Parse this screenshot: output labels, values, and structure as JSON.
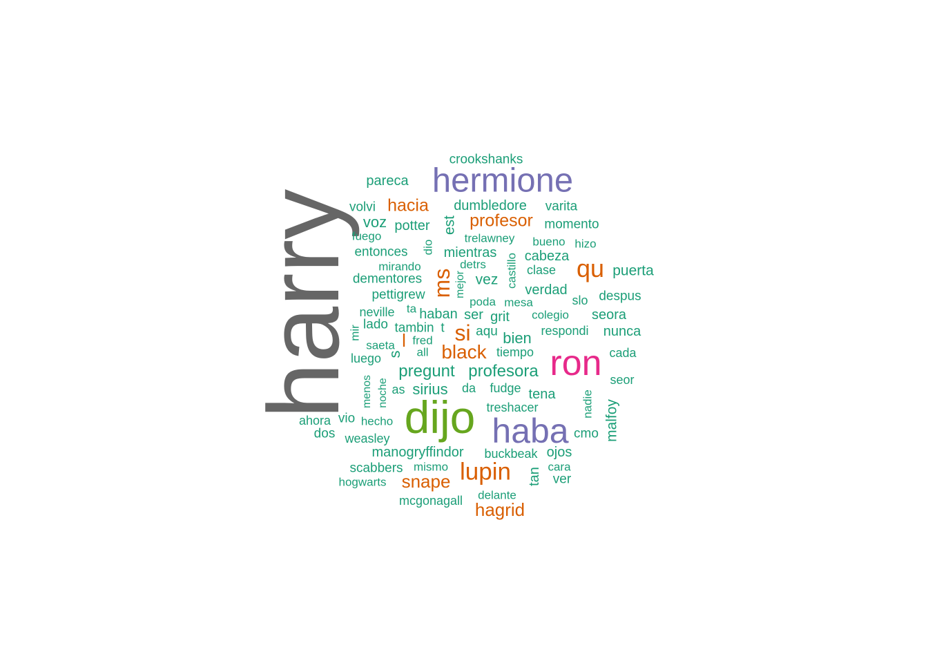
{
  "colors": {
    "teal": "#1b9e77",
    "orange": "#d95f02",
    "purple": "#7570b3",
    "magenta": "#e7298a",
    "green": "#66a61e",
    "gray": "#666666"
  },
  "words": [
    {
      "text": "harry",
      "color": "#666666",
      "rotated": true
    },
    {
      "text": "dijo",
      "color": "#66a61e",
      "rotated": false
    },
    {
      "text": "ron",
      "color": "#e7298a",
      "rotated": false
    },
    {
      "text": "hermione",
      "color": "#7570b3",
      "rotated": false
    },
    {
      "text": "haba",
      "color": "#7570b3",
      "rotated": false
    },
    {
      "text": "lupin",
      "color": "#d95f02",
      "rotated": false
    },
    {
      "text": "qu",
      "color": "#d95f02",
      "rotated": false
    },
    {
      "text": "ms",
      "color": "#d95f02",
      "rotated": true
    },
    {
      "text": "si",
      "color": "#d95f02",
      "rotated": false
    },
    {
      "text": "black",
      "color": "#d95f02",
      "rotated": false
    },
    {
      "text": "hacia",
      "color": "#d95f02",
      "rotated": false
    },
    {
      "text": "profesor",
      "color": "#d95f02",
      "rotated": false
    },
    {
      "text": "snape",
      "color": "#d95f02",
      "rotated": false
    },
    {
      "text": "hagrid",
      "color": "#d95f02",
      "rotated": false
    },
    {
      "text": "l",
      "color": "#d95f02",
      "rotated": false
    },
    {
      "text": "crookshanks",
      "color": "#1b9e77",
      "rotated": false
    },
    {
      "text": "pareca",
      "color": "#1b9e77",
      "rotated": false
    },
    {
      "text": "volvi",
      "color": "#1b9e77",
      "rotated": false
    },
    {
      "text": "dumbledore",
      "color": "#1b9e77",
      "rotated": false
    },
    {
      "text": "varita",
      "color": "#1b9e77",
      "rotated": false
    },
    {
      "text": "voz",
      "color": "#1b9e77",
      "rotated": false
    },
    {
      "text": "potter",
      "color": "#1b9e77",
      "rotated": false
    },
    {
      "text": "est",
      "color": "#1b9e77",
      "rotated": true
    },
    {
      "text": "momento",
      "color": "#1b9e77",
      "rotated": false
    },
    {
      "text": "fuego",
      "color": "#1b9e77",
      "rotated": false
    },
    {
      "text": "trelawney",
      "color": "#1b9e77",
      "rotated": false
    },
    {
      "text": "bueno",
      "color": "#1b9e77",
      "rotated": false
    },
    {
      "text": "hizo",
      "color": "#1b9e77",
      "rotated": false
    },
    {
      "text": "entonces",
      "color": "#1b9e77",
      "rotated": false
    },
    {
      "text": "dio",
      "color": "#1b9e77",
      "rotated": true
    },
    {
      "text": "mientras",
      "color": "#1b9e77",
      "rotated": false
    },
    {
      "text": "cabeza",
      "color": "#1b9e77",
      "rotated": false
    },
    {
      "text": "mirando",
      "color": "#1b9e77",
      "rotated": false
    },
    {
      "text": "detrs",
      "color": "#1b9e77",
      "rotated": false
    },
    {
      "text": "castillo",
      "color": "#1b9e77",
      "rotated": true
    },
    {
      "text": "clase",
      "color": "#1b9e77",
      "rotated": false
    },
    {
      "text": "puerta",
      "color": "#1b9e77",
      "rotated": false
    },
    {
      "text": "dementores",
      "color": "#1b9e77",
      "rotated": false
    },
    {
      "text": "mejor",
      "color": "#1b9e77",
      "rotated": true
    },
    {
      "text": "vez",
      "color": "#1b9e77",
      "rotated": false
    },
    {
      "text": "verdad",
      "color": "#1b9e77",
      "rotated": false
    },
    {
      "text": "pettigrew",
      "color": "#1b9e77",
      "rotated": false
    },
    {
      "text": "poda",
      "color": "#1b9e77",
      "rotated": false
    },
    {
      "text": "mesa",
      "color": "#1b9e77",
      "rotated": false
    },
    {
      "text": "slo",
      "color": "#1b9e77",
      "rotated": false
    },
    {
      "text": "despus",
      "color": "#1b9e77",
      "rotated": false
    },
    {
      "text": "neville",
      "color": "#1b9e77",
      "rotated": false
    },
    {
      "text": "ta",
      "color": "#1b9e77",
      "rotated": false
    },
    {
      "text": "haban",
      "color": "#1b9e77",
      "rotated": false
    },
    {
      "text": "ser",
      "color": "#1b9e77",
      "rotated": false
    },
    {
      "text": "grit",
      "color": "#1b9e77",
      "rotated": false
    },
    {
      "text": "colegio",
      "color": "#1b9e77",
      "rotated": false
    },
    {
      "text": "seora",
      "color": "#1b9e77",
      "rotated": false
    },
    {
      "text": "lado",
      "color": "#1b9e77",
      "rotated": false
    },
    {
      "text": "tambin",
      "color": "#1b9e77",
      "rotated": false
    },
    {
      "text": "t",
      "color": "#1b9e77",
      "rotated": false
    },
    {
      "text": "aqu",
      "color": "#1b9e77",
      "rotated": false
    },
    {
      "text": "respondi",
      "color": "#1b9e77",
      "rotated": false
    },
    {
      "text": "nunca",
      "color": "#1b9e77",
      "rotated": false
    },
    {
      "text": "mir",
      "color": "#1b9e77",
      "rotated": true
    },
    {
      "text": "fred",
      "color": "#1b9e77",
      "rotated": false
    },
    {
      "text": "bien",
      "color": "#1b9e77",
      "rotated": false
    },
    {
      "text": "saeta",
      "color": "#1b9e77",
      "rotated": false
    },
    {
      "text": "all",
      "color": "#1b9e77",
      "rotated": false
    },
    {
      "text": "tiempo",
      "color": "#1b9e77",
      "rotated": false
    },
    {
      "text": "cada",
      "color": "#1b9e77",
      "rotated": false
    },
    {
      "text": "luego",
      "color": "#1b9e77",
      "rotated": false
    },
    {
      "text": "s",
      "color": "#1b9e77",
      "rotated": true
    },
    {
      "text": "pregunt",
      "color": "#1b9e77",
      "rotated": false
    },
    {
      "text": "profesora",
      "color": "#1b9e77",
      "rotated": false
    },
    {
      "text": "seor",
      "color": "#1b9e77",
      "rotated": false
    },
    {
      "text": "menos",
      "color": "#1b9e77",
      "rotated": true
    },
    {
      "text": "noche",
      "color": "#1b9e77",
      "rotated": true
    },
    {
      "text": "as",
      "color": "#1b9e77",
      "rotated": false
    },
    {
      "text": "sirius",
      "color": "#1b9e77",
      "rotated": false
    },
    {
      "text": "da",
      "color": "#1b9e77",
      "rotated": false
    },
    {
      "text": "fudge",
      "color": "#1b9e77",
      "rotated": false
    },
    {
      "text": "tena",
      "color": "#1b9e77",
      "rotated": false
    },
    {
      "text": "nadie",
      "color": "#1b9e77",
      "rotated": true
    },
    {
      "text": "malfoy",
      "color": "#1b9e77",
      "rotated": true
    },
    {
      "text": "ahora",
      "color": "#1b9e77",
      "rotated": false
    },
    {
      "text": "vio",
      "color": "#1b9e77",
      "rotated": false
    },
    {
      "text": "hecho",
      "color": "#1b9e77",
      "rotated": false
    },
    {
      "text": "treshacer",
      "color": "#1b9e77",
      "rotated": false
    },
    {
      "text": "dos",
      "color": "#1b9e77",
      "rotated": false
    },
    {
      "text": "weasley",
      "color": "#1b9e77",
      "rotated": false
    },
    {
      "text": "cmo",
      "color": "#1b9e77",
      "rotated": false
    },
    {
      "text": "manogryffindor",
      "color": "#1b9e77",
      "rotated": false
    },
    {
      "text": "buckbeak",
      "color": "#1b9e77",
      "rotated": false
    },
    {
      "text": "ojos",
      "color": "#1b9e77",
      "rotated": false
    },
    {
      "text": "scabbers",
      "color": "#1b9e77",
      "rotated": false
    },
    {
      "text": "mismo",
      "color": "#1b9e77",
      "rotated": false
    },
    {
      "text": "tan",
      "color": "#1b9e77",
      "rotated": true
    },
    {
      "text": "cara",
      "color": "#1b9e77",
      "rotated": false
    },
    {
      "text": "hogwarts",
      "color": "#1b9e77",
      "rotated": false
    },
    {
      "text": "ver",
      "color": "#1b9e77",
      "rotated": false
    },
    {
      "text": "mcgonagall",
      "color": "#1b9e77",
      "rotated": false
    },
    {
      "text": "delante",
      "color": "#1b9e77",
      "rotated": false
    }
  ]
}
